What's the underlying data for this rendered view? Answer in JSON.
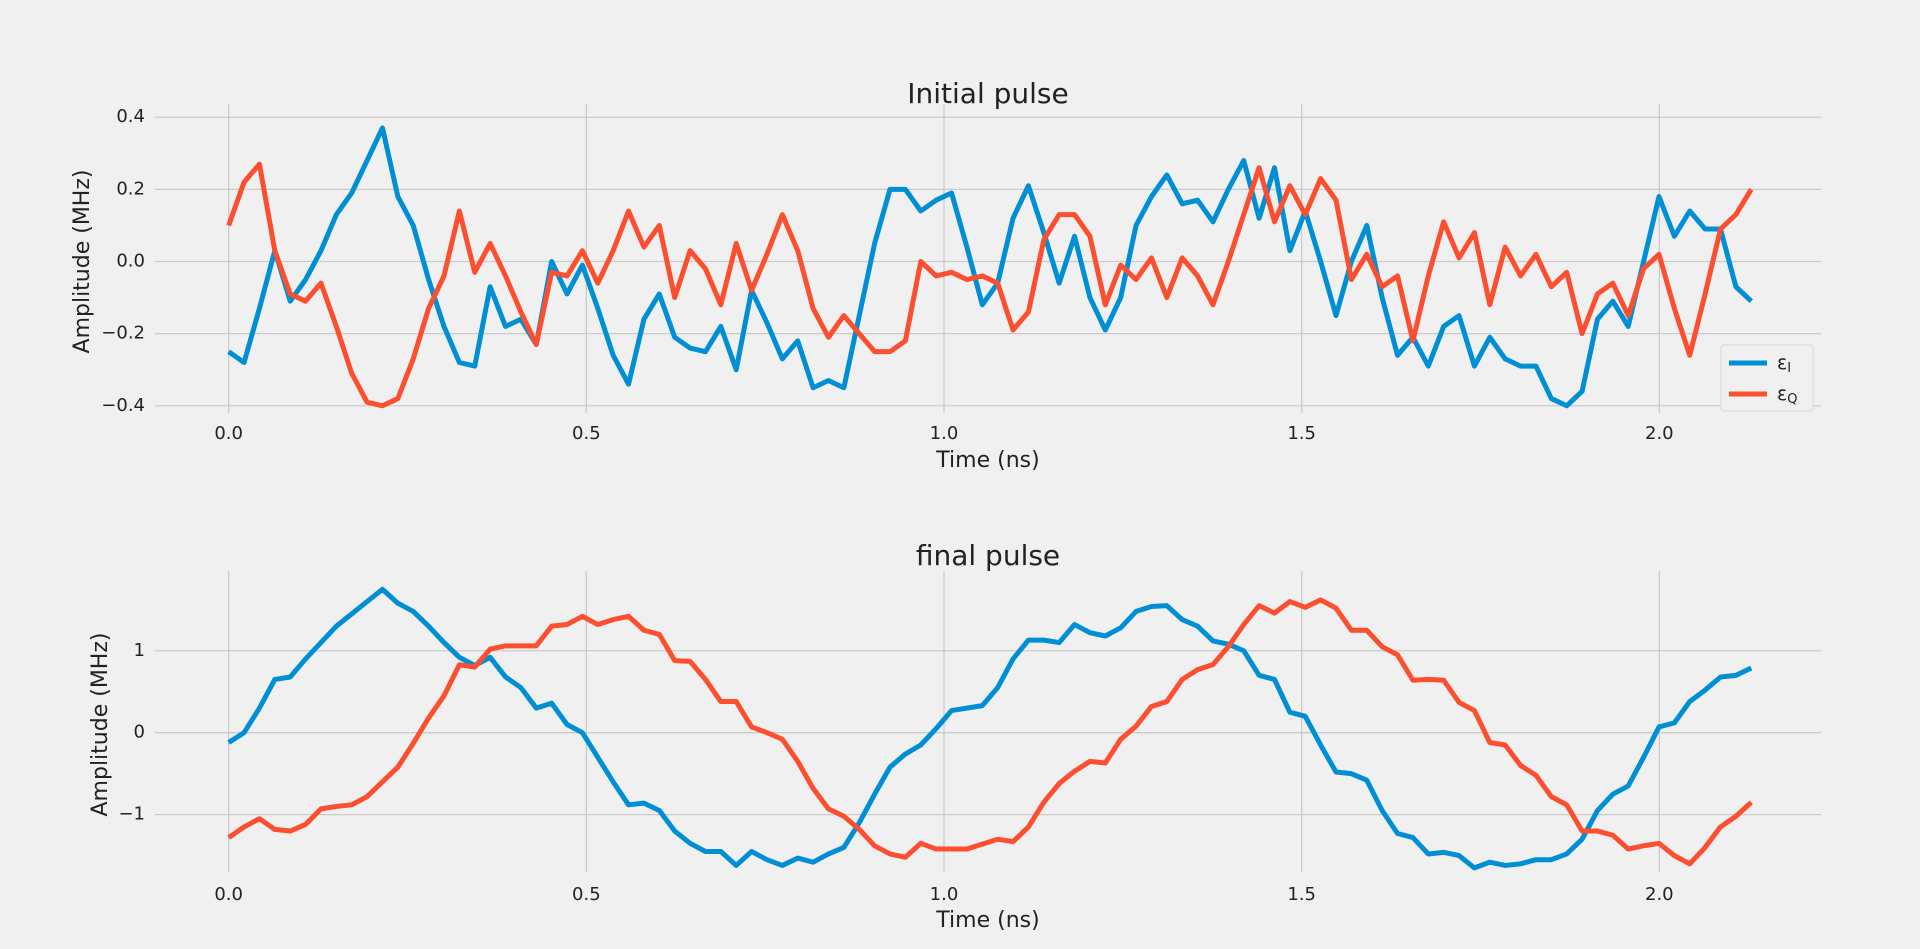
{
  "chart_data": [
    {
      "type": "line",
      "title": "Initial pulse",
      "xlabel": "Time (ns)",
      "ylabel": "Amplitude (MHz)",
      "x": [
        0,
        0.0215,
        0.043,
        0.0645,
        0.086,
        0.1075,
        0.129,
        0.1505,
        0.172,
        0.1935,
        0.215,
        0.2365,
        0.258,
        0.2795,
        0.301,
        0.3225,
        0.344,
        0.3655,
        0.387,
        0.4085,
        0.43,
        0.4515,
        0.473,
        0.4945,
        0.516,
        0.5375,
        0.559,
        0.5805,
        0.602,
        0.6235,
        0.645,
        0.6665,
        0.688,
        0.7095,
        0.731,
        0.7525,
        0.774,
        0.7955,
        0.817,
        0.8385,
        0.86,
        0.8815,
        0.903,
        0.9245,
        0.946,
        0.9675,
        0.989,
        1.0105,
        1.032,
        1.0535,
        1.075,
        1.0965,
        1.118,
        1.1395,
        1.161,
        1.1825,
        1.204,
        1.2255,
        1.247,
        1.2685,
        1.29,
        1.3115,
        1.333,
        1.3545,
        1.376,
        1.3975,
        1.419,
        1.4405,
        1.462,
        1.4835,
        1.505,
        1.5265,
        1.548,
        1.5695,
        1.591,
        1.6125,
        1.634,
        1.6555,
        1.677,
        1.6985,
        1.72,
        1.7415,
        1.763,
        1.7845,
        1.806,
        1.8275,
        1.849,
        1.8705,
        1.892,
        1.9135,
        1.935,
        1.9565,
        1.978,
        1.9995,
        2.021,
        2.0425,
        2.064,
        2.0855,
        2.107,
        2.1285
      ],
      "series": [
        {
          "name": "εI",
          "color": "#008fd5",
          "values": [
            -0.25,
            -0.28,
            -0.13,
            0.03,
            -0.11,
            -0.05,
            0.03,
            0.13,
            0.19,
            0.28,
            0.37,
            0.18,
            0.1,
            -0.05,
            -0.18,
            -0.28,
            -0.29,
            -0.07,
            -0.18,
            -0.16,
            -0.23,
            0.0,
            -0.09,
            -0.01,
            -0.13,
            -0.26,
            -0.34,
            -0.16,
            -0.09,
            -0.21,
            -0.24,
            -0.25,
            -0.18,
            -0.3,
            -0.08,
            -0.17,
            -0.27,
            -0.22,
            -0.35,
            -0.33,
            -0.35,
            -0.15,
            0.05,
            0.2,
            0.2,
            0.14,
            0.17,
            0.19,
            0.04,
            -0.12,
            -0.06,
            0.12,
            0.21,
            0.08,
            -0.06,
            0.07,
            -0.1,
            -0.19,
            -0.1,
            0.1,
            0.18,
            0.24,
            0.16,
            0.17,
            0.11,
            0.2,
            0.28,
            0.12,
            0.26,
            0.03,
            0.14,
            0.0,
            -0.15,
            0.0,
            0.1,
            -0.1,
            -0.26,
            -0.21,
            -0.29,
            -0.18,
            -0.15,
            -0.29,
            -0.21,
            -0.27,
            -0.29,
            -0.29,
            -0.38,
            -0.4,
            -0.36,
            -0.16,
            -0.11,
            -0.18,
            0.0,
            0.18,
            0.07,
            0.14,
            0.09,
            0.09,
            -0.07,
            -0.11
          ]
        },
        {
          "name": "εQ",
          "color": "#fc4f30",
          "values": [
            0.1,
            0.22,
            0.27,
            0.03,
            -0.09,
            -0.11,
            -0.06,
            -0.18,
            -0.31,
            -0.39,
            -0.4,
            -0.38,
            -0.27,
            -0.13,
            -0.04,
            0.14,
            -0.03,
            0.05,
            -0.04,
            -0.14,
            -0.23,
            -0.03,
            -0.04,
            0.03,
            -0.06,
            0.03,
            0.14,
            0.04,
            0.1,
            -0.1,
            0.03,
            -0.02,
            -0.12,
            0.05,
            -0.08,
            0.02,
            0.13,
            0.03,
            -0.13,
            -0.21,
            -0.15,
            -0.2,
            -0.25,
            -0.25,
            -0.22,
            0.0,
            -0.04,
            -0.03,
            -0.05,
            -0.04,
            -0.06,
            -0.19,
            -0.14,
            0.06,
            0.13,
            0.13,
            0.07,
            -0.12,
            -0.01,
            -0.05,
            0.01,
            -0.1,
            0.01,
            -0.04,
            -0.12,
            0.0,
            0.13,
            0.26,
            0.11,
            0.21,
            0.13,
            0.23,
            0.17,
            -0.05,
            0.02,
            -0.07,
            -0.04,
            -0.22,
            -0.04,
            0.11,
            0.01,
            0.08,
            -0.12,
            0.04,
            -0.04,
            0.02,
            -0.07,
            -0.03,
            -0.2,
            -0.09,
            -0.06,
            -0.15,
            -0.02,
            0.02,
            -0.13,
            -0.26,
            -0.09,
            0.09,
            0.13,
            0.2
          ]
        }
      ],
      "xlim": [
        -0.103,
        2.226
      ],
      "ylim": [
        -0.42,
        0.42
      ],
      "xticks": [
        {
          "value": 0,
          "label": "0.0"
        },
        0.5,
        {
          "value": 1,
          "label": "1.0"
        },
        1.5,
        {
          "value": 2,
          "label": "2.0"
        }
      ],
      "yticks": [
        {
          "value": -0.4,
          "label": "−0.4"
        },
        {
          "value": -0.2,
          "label": "−0.2"
        },
        {
          "value": 0,
          "label": "0.0"
        },
        0.2,
        0.4
      ],
      "grid": true,
      "legend": "lower right"
    },
    {
      "type": "line",
      "title": "final pulse",
      "xlabel": "Time (ns)",
      "ylabel": "Amplitude (MHz)",
      "x": [
        0,
        0.0215,
        0.043,
        0.0645,
        0.086,
        0.1075,
        0.129,
        0.1505,
        0.172,
        0.1935,
        0.215,
        0.2365,
        0.258,
        0.2795,
        0.301,
        0.3225,
        0.344,
        0.3655,
        0.387,
        0.4085,
        0.43,
        0.4515,
        0.473,
        0.4945,
        0.516,
        0.5375,
        0.559,
        0.5805,
        0.602,
        0.6235,
        0.645,
        0.6665,
        0.688,
        0.7095,
        0.731,
        0.7525,
        0.774,
        0.7955,
        0.817,
        0.8385,
        0.86,
        0.8815,
        0.903,
        0.9245,
        0.946,
        0.9675,
        0.989,
        1.0105,
        1.032,
        1.0535,
        1.075,
        1.0965,
        1.118,
        1.1395,
        1.161,
        1.1825,
        1.204,
        1.2255,
        1.247,
        1.2685,
        1.29,
        1.3115,
        1.333,
        1.3545,
        1.376,
        1.3975,
        1.419,
        1.4405,
        1.462,
        1.4835,
        1.505,
        1.5265,
        1.548,
        1.5695,
        1.591,
        1.6125,
        1.634,
        1.6555,
        1.677,
        1.6985,
        1.72,
        1.7415,
        1.763,
        1.7845,
        1.806,
        1.8275,
        1.849,
        1.8705,
        1.892,
        1.9135,
        1.935,
        1.9565,
        1.978,
        1.9995,
        2.021,
        2.0425,
        2.064,
        2.0855,
        2.107,
        2.1285
      ],
      "series": [
        {
          "color": "#008fd5",
          "values": [
            -0.12,
            0.0,
            0.3,
            0.65,
            0.68,
            0.9,
            1.1,
            1.3,
            1.45,
            1.6,
            1.75,
            1.58,
            1.48,
            1.3,
            1.1,
            0.92,
            0.82,
            0.92,
            0.68,
            0.55,
            0.3,
            0.36,
            0.1,
            0.0,
            -0.3,
            -0.6,
            -0.88,
            -0.86,
            -0.95,
            -1.2,
            -1.35,
            -1.45,
            -1.45,
            -1.62,
            -1.45,
            -1.55,
            -1.62,
            -1.53,
            -1.58,
            -1.48,
            -1.4,
            -1.1,
            -0.75,
            -0.42,
            -0.26,
            -0.15,
            0.05,
            0.27,
            0.3,
            0.33,
            0.55,
            0.9,
            1.13,
            1.13,
            1.1,
            1.32,
            1.22,
            1.18,
            1.28,
            1.48,
            1.54,
            1.55,
            1.38,
            1.3,
            1.12,
            1.08,
            1.0,
            0.7,
            0.65,
            0.25,
            0.2,
            -0.15,
            -0.48,
            -0.5,
            -0.58,
            -0.95,
            -1.23,
            -1.28,
            -1.48,
            -1.46,
            -1.5,
            -1.65,
            -1.58,
            -1.62,
            -1.6,
            -1.55,
            -1.55,
            -1.48,
            -1.3,
            -0.95,
            -0.75,
            -0.65,
            -0.3,
            0.07,
            0.12,
            0.38,
            0.52,
            0.68,
            0.7,
            0.79
          ]
        },
        {
          "color": "#fc4f30",
          "values": [
            -1.28,
            -1.15,
            -1.05,
            -1.18,
            -1.2,
            -1.12,
            -0.93,
            -0.9,
            -0.88,
            -0.78,
            -0.6,
            -0.42,
            -0.13,
            0.18,
            0.45,
            0.83,
            0.8,
            1.02,
            1.06,
            1.06,
            1.06,
            1.3,
            1.32,
            1.42,
            1.32,
            1.38,
            1.42,
            1.25,
            1.2,
            0.88,
            0.87,
            0.65,
            0.38,
            0.38,
            0.07,
            0.0,
            -0.08,
            -0.35,
            -0.68,
            -0.93,
            -1.02,
            -1.18,
            -1.38,
            -1.48,
            -1.52,
            -1.35,
            -1.42,
            -1.42,
            -1.42,
            -1.36,
            -1.3,
            -1.33,
            -1.15,
            -0.85,
            -0.62,
            -0.47,
            -0.35,
            -0.37,
            -0.08,
            0.08,
            0.32,
            0.38,
            0.65,
            0.77,
            0.83,
            1.05,
            1.32,
            1.55,
            1.46,
            1.6,
            1.53,
            1.62,
            1.52,
            1.25,
            1.25,
            1.05,
            0.95,
            0.64,
            0.65,
            0.64,
            0.37,
            0.27,
            -0.12,
            -0.15,
            -0.4,
            -0.52,
            -0.78,
            -0.88,
            -1.2,
            -1.2,
            -1.25,
            -1.42,
            -1.38,
            -1.35,
            -1.5,
            -1.6,
            -1.4,
            -1.15,
            -1.02,
            -0.85
          ]
        }
      ],
      "xlim": [
        -0.103,
        2.226
      ],
      "ylim": [
        -1.7,
        1.9
      ],
      "xticks": [
        {
          "value": 0,
          "label": "0.0"
        },
        0.5,
        {
          "value": 1,
          "label": "1.0"
        },
        1.5,
        {
          "value": 2,
          "label": "2.0"
        }
      ],
      "yticks": [
        {
          "value": -1,
          "label": "−1"
        },
        0,
        1
      ],
      "grid": true
    }
  ]
}
